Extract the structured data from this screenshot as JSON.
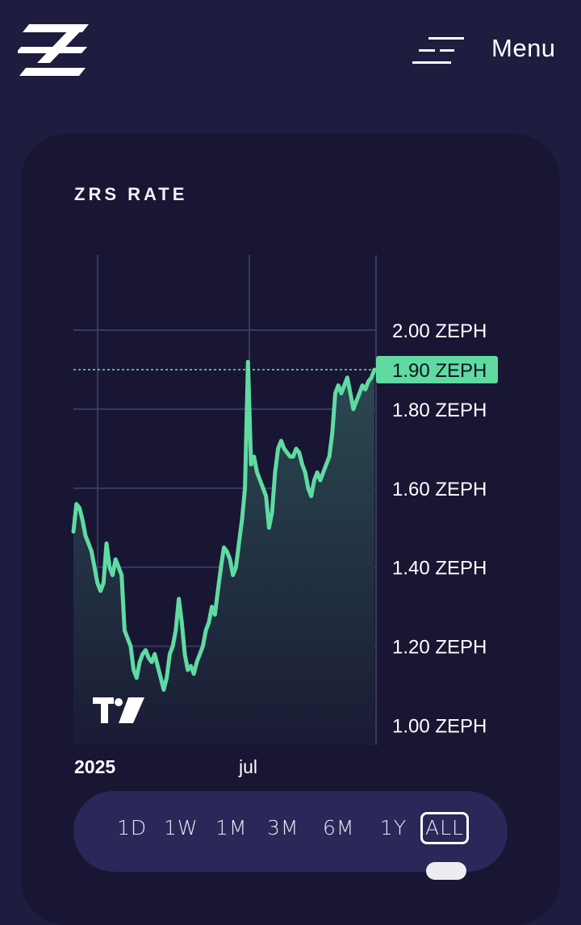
{
  "header": {
    "logo_icon": "zephyr-logo",
    "menu_icon": "hamburger-icon",
    "menu_label": "Menu"
  },
  "card": {
    "title": "ZRS RATE"
  },
  "chart_data": {
    "type": "area",
    "title": "ZRS RATE",
    "y_unit": "ZEPH",
    "y_ticks": [
      "1.00 ZEPH",
      "1.20 ZEPH",
      "1.40 ZEPH",
      "1.60 ZEPH",
      "1.80 ZEPH",
      "2.00 ZEPH"
    ],
    "y_tick_values": [
      1.0,
      1.2,
      1.4,
      1.6,
      1.8,
      2.0
    ],
    "x_ticks": [
      "2025",
      "jul"
    ],
    "ylim": [
      0.95,
      2.19
    ],
    "current_value": 1.9,
    "current_label": "1.90 ZEPH",
    "line_color": "#5fdba2",
    "label_bg": "#5fdba2",
    "grid": true,
    "watermark_icon": "tradingview-logo",
    "series": [
      {
        "values": [
          1.49,
          1.56,
          1.55,
          1.52,
          1.48,
          1.46,
          1.44,
          1.4,
          1.36,
          1.34,
          1.36,
          1.46,
          1.4,
          1.38,
          1.42,
          1.4,
          1.38,
          1.24,
          1.22,
          1.2,
          1.14,
          1.12,
          1.16,
          1.18,
          1.19,
          1.17,
          1.16,
          1.18,
          1.15,
          1.12,
          1.09,
          1.12,
          1.18,
          1.2,
          1.24,
          1.32,
          1.26,
          1.18,
          1.14,
          1.15,
          1.13,
          1.16,
          1.18,
          1.2,
          1.24,
          1.26,
          1.3,
          1.28,
          1.34,
          1.4,
          1.45,
          1.44,
          1.42,
          1.38,
          1.4,
          1.46,
          1.52,
          1.6,
          1.92,
          1.66,
          1.68,
          1.64,
          1.62,
          1.6,
          1.58,
          1.5,
          1.54,
          1.64,
          1.7,
          1.72,
          1.7,
          1.69,
          1.68,
          1.68,
          1.7,
          1.69,
          1.66,
          1.64,
          1.6,
          1.58,
          1.62,
          1.64,
          1.62,
          1.64,
          1.66,
          1.68,
          1.74,
          1.84,
          1.86,
          1.84,
          1.86,
          1.88,
          1.84,
          1.8,
          1.82,
          1.84,
          1.86,
          1.85,
          1.87,
          1.88,
          1.9
        ]
      }
    ]
  },
  "range_buttons": [
    {
      "label": "1D",
      "active": false
    },
    {
      "label": "1W",
      "active": false
    },
    {
      "label": "1M",
      "active": false
    },
    {
      "label": "3M",
      "active": false
    },
    {
      "label": "6M",
      "active": false
    },
    {
      "label": "1Y",
      "active": false
    },
    {
      "label": "ALL",
      "active": true
    }
  ]
}
